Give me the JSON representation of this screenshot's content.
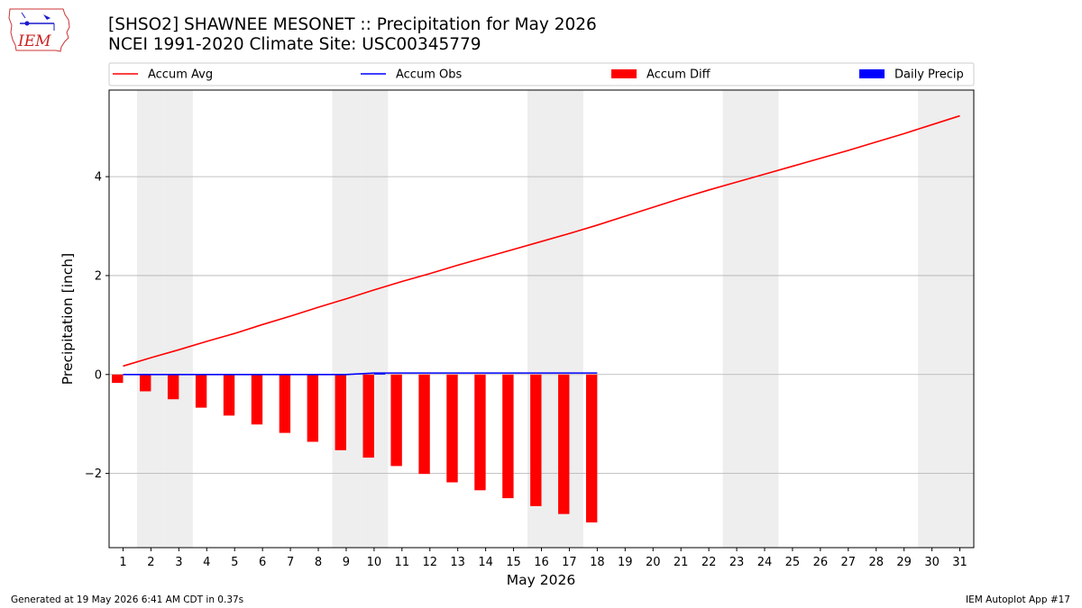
{
  "header": {
    "title_line1": "[SHSO2] SHAWNEE MESONET :: Precipitation for May 2026",
    "title_line2": "NCEI 1991-2020 Climate Site: USC00345779"
  },
  "logo": {
    "text": "IEM",
    "icon": "iem-iowa-logo-icon"
  },
  "footer": {
    "generated": "Generated at 19 May 2026 6:41 AM CDT in 0.37s",
    "app": "IEM Autoplot App #17"
  },
  "colors": {
    "accum_avg": "#ff0000",
    "accum_obs": "#0000ff",
    "accum_diff": "#ff0000",
    "daily_precip": "#0000ff",
    "weekend_shade": "#eeeeee",
    "grid": "#b0b0b0"
  },
  "chart_data": {
    "type": "bar",
    "xlabel": "May 2026",
    "ylabel": "Precipitation [inch]",
    "ylim": [
      -3.5,
      5.75
    ],
    "yticks": [
      -2,
      0,
      2,
      4
    ],
    "xlim": [
      0.5,
      31.5
    ],
    "days": [
      1,
      2,
      3,
      4,
      5,
      6,
      7,
      8,
      9,
      10,
      11,
      12,
      13,
      14,
      15,
      16,
      17,
      18,
      19,
      20,
      21,
      22,
      23,
      24,
      25,
      26,
      27,
      28,
      29,
      30,
      31
    ],
    "weekend_days": [
      2,
      3,
      9,
      10,
      16,
      17,
      23,
      24,
      30,
      31
    ],
    "grid": "horizontal",
    "legend": {
      "placement": "top",
      "entries": [
        {
          "label": "Accum Avg",
          "kind": "line",
          "color": "#ff0000"
        },
        {
          "label": "Accum Obs",
          "kind": "line",
          "color": "#0000ff"
        },
        {
          "label": "Accum Diff",
          "kind": "bar",
          "color": "#ff0000"
        },
        {
          "label": "Daily Precip",
          "kind": "bar",
          "color": "#0000ff"
        }
      ]
    },
    "series": [
      {
        "name": "Accum Avg",
        "kind": "line",
        "values": [
          0.17,
          0.34,
          0.5,
          0.67,
          0.83,
          1.01,
          1.18,
          1.36,
          1.53,
          1.71,
          1.88,
          2.04,
          2.21,
          2.37,
          2.53,
          2.69,
          2.85,
          3.02,
          3.2,
          3.38,
          3.56,
          3.73,
          3.89,
          4.05,
          4.21,
          4.37,
          4.53,
          4.7,
          4.87,
          5.05,
          5.23
        ]
      },
      {
        "name": "Accum Obs",
        "kind": "line",
        "values": [
          0.0,
          0.0,
          0.0,
          0.0,
          0.0,
          0.0,
          0.0,
          0.0,
          0.0,
          0.03,
          0.03,
          0.03,
          0.03,
          0.03,
          0.03,
          0.03,
          0.03,
          0.03
        ]
      },
      {
        "name": "Accum Diff",
        "kind": "bar",
        "values": [
          -0.17,
          -0.34,
          -0.5,
          -0.67,
          -0.83,
          -1.01,
          -1.18,
          -1.36,
          -1.53,
          -1.68,
          -1.85,
          -2.01,
          -2.18,
          -2.34,
          -2.5,
          -2.66,
          -2.82,
          -2.99
        ]
      },
      {
        "name": "Daily Precip",
        "kind": "bar",
        "values": [
          0,
          0,
          0,
          0,
          0,
          0,
          0,
          0,
          0,
          0.03,
          0,
          0,
          0,
          0,
          0,
          0,
          0,
          0
        ]
      }
    ]
  }
}
